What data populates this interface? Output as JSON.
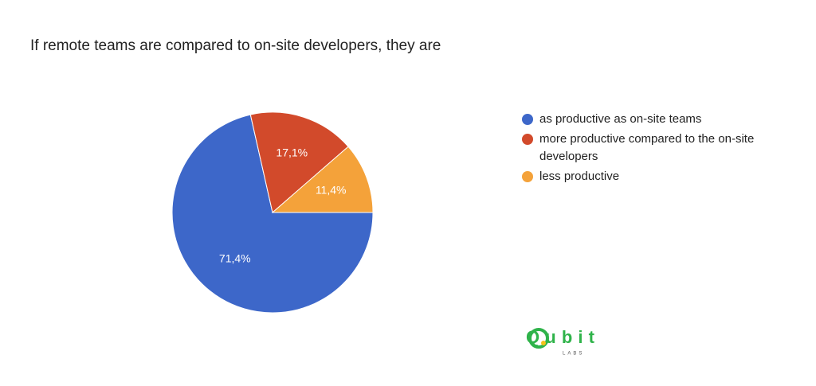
{
  "chart_data": {
    "type": "pie",
    "title": "If remote teams are compared to on-site developers, they are",
    "categories": [
      "as productive as on-site teams",
      "more productive compared to the on-site developers",
      "less productive"
    ],
    "values": [
      71.4,
      17.1,
      11.4
    ],
    "value_labels": [
      "71,4%",
      "17,1%",
      "11,4%"
    ],
    "colors": [
      "#3d67c9",
      "#d24a2b",
      "#f4a23a"
    ],
    "legend": "right"
  },
  "logo": {
    "name": "Qubit",
    "tagline": "LABS"
  }
}
